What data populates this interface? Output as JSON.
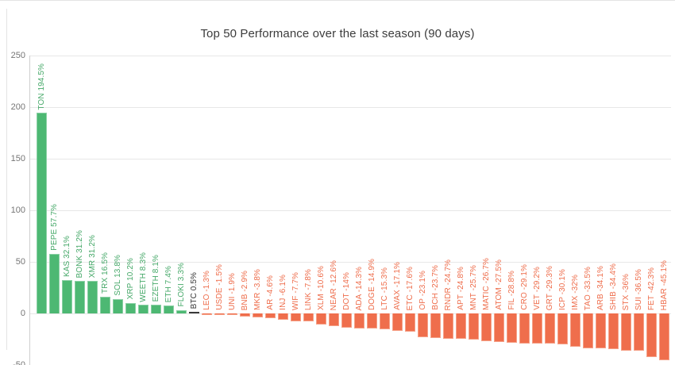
{
  "chart_data": {
    "type": "bar",
    "title": "Top 50 Performance over the last season (90 days)",
    "xlabel": "",
    "ylabel": "",
    "unit": "%",
    "ylim": [
      -50,
      250
    ],
    "yticks": [
      250,
      200,
      150,
      100,
      50,
      0,
      -50
    ],
    "grid": true,
    "legend": false,
    "series": [
      {
        "name": "TON",
        "value": 194.5,
        "role": "gain"
      },
      {
        "name": "PEPE",
        "value": 57.7,
        "role": "gain"
      },
      {
        "name": "KAS",
        "value": 32.1,
        "role": "gain"
      },
      {
        "name": "BONK",
        "value": 31.2,
        "role": "gain"
      },
      {
        "name": "XMR",
        "value": 31.2,
        "role": "gain"
      },
      {
        "name": "TRX",
        "value": 16.5,
        "role": "gain"
      },
      {
        "name": "SOL",
        "value": 13.8,
        "role": "gain"
      },
      {
        "name": "XRP",
        "value": 10.2,
        "role": "gain"
      },
      {
        "name": "WEETH",
        "value": 8.3,
        "role": "gain"
      },
      {
        "name": "EZETH",
        "value": 8.1,
        "role": "gain"
      },
      {
        "name": "ETH",
        "value": 7.4,
        "role": "gain"
      },
      {
        "name": "FLOKI",
        "value": 3.3,
        "role": "gain"
      },
      {
        "name": "BTC",
        "value": 0.5,
        "role": "benchmark"
      },
      {
        "name": "LEO",
        "value": -1.3,
        "role": "loss"
      },
      {
        "name": "USDE",
        "value": -1.5,
        "role": "loss"
      },
      {
        "name": "UNI",
        "value": -1.9,
        "role": "loss"
      },
      {
        "name": "BNB",
        "value": -2.9,
        "role": "loss"
      },
      {
        "name": "MKR",
        "value": -3.8,
        "role": "loss"
      },
      {
        "name": "AR",
        "value": -4.6,
        "role": "loss"
      },
      {
        "name": "INJ",
        "value": -6.1,
        "role": "loss"
      },
      {
        "name": "WIF",
        "value": -7.7,
        "role": "loss"
      },
      {
        "name": "LINK",
        "value": -7.8,
        "role": "loss"
      },
      {
        "name": "XLM",
        "value": -10.6,
        "role": "loss"
      },
      {
        "name": "NEAR",
        "value": -12.6,
        "role": "loss"
      },
      {
        "name": "DOT",
        "value": -14,
        "role": "loss"
      },
      {
        "name": "ADA",
        "value": -14.3,
        "role": "loss"
      },
      {
        "name": "DOGE",
        "value": -14.9,
        "role": "loss"
      },
      {
        "name": "LTC",
        "value": -15.3,
        "role": "loss"
      },
      {
        "name": "AVAX",
        "value": -17.1,
        "role": "loss"
      },
      {
        "name": "ETC",
        "value": -17.6,
        "role": "loss"
      },
      {
        "name": "OP",
        "value": -23.1,
        "role": "loss"
      },
      {
        "name": "BCH",
        "value": -23.7,
        "role": "loss"
      },
      {
        "name": "RNDR",
        "value": -24.7,
        "role": "loss"
      },
      {
        "name": "APT",
        "value": -24.8,
        "role": "loss"
      },
      {
        "name": "MNT",
        "value": -25.7,
        "role": "loss"
      },
      {
        "name": "MATIC",
        "value": -26.7,
        "role": "loss"
      },
      {
        "name": "ATOM",
        "value": -27.5,
        "role": "loss"
      },
      {
        "name": "FIL",
        "value": -28.8,
        "role": "loss"
      },
      {
        "name": "CRO",
        "value": -29.1,
        "role": "loss"
      },
      {
        "name": "VET",
        "value": -29.2,
        "role": "loss"
      },
      {
        "name": "GRT",
        "value": -29.3,
        "role": "loss"
      },
      {
        "name": "ICP",
        "value": -30.1,
        "role": "loss"
      },
      {
        "name": "IMX",
        "value": -32,
        "role": "loss"
      },
      {
        "name": "TAO",
        "value": -33.5,
        "role": "loss"
      },
      {
        "name": "ARB",
        "value": -34.1,
        "role": "loss"
      },
      {
        "name": "SHIB",
        "value": -34.4,
        "role": "loss"
      },
      {
        "name": "STX",
        "value": -36,
        "role": "loss"
      },
      {
        "name": "SUI",
        "value": -36.5,
        "role": "loss"
      },
      {
        "name": "FET",
        "value": -42.3,
        "role": "loss"
      },
      {
        "name": "HBAR",
        "value": -45.1,
        "role": "loss"
      }
    ],
    "colors": {
      "gain": "#4db873",
      "gain_border": "#8ad0a4",
      "gain_label": "#45a868",
      "loss": "#ef6e4c",
      "loss_border": "#f5a188",
      "loss_label": "#ee6c4a",
      "benchmark": "#3a3a3a",
      "benchmark_label": "#333333",
      "axis_label": "#757575",
      "title": "#3c3c3c"
    }
  }
}
